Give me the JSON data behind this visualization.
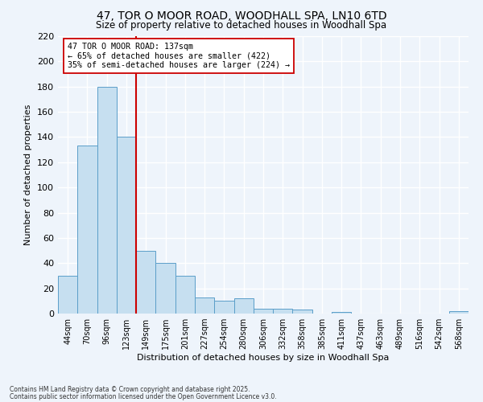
{
  "title_line1": "47, TOR O MOOR ROAD, WOODHALL SPA, LN10 6TD",
  "title_line2": "Size of property relative to detached houses in Woodhall Spa",
  "xlabel": "Distribution of detached houses by size in Woodhall Spa",
  "ylabel": "Number of detached properties",
  "bar_labels": [
    "44sqm",
    "70sqm",
    "96sqm",
    "123sqm",
    "149sqm",
    "175sqm",
    "201sqm",
    "227sqm",
    "254sqm",
    "280sqm",
    "306sqm",
    "332sqm",
    "358sqm",
    "385sqm",
    "411sqm",
    "437sqm",
    "463sqm",
    "489sqm",
    "516sqm",
    "542sqm",
    "568sqm"
  ],
  "bar_values": [
    30,
    133,
    180,
    140,
    50,
    40,
    30,
    13,
    10,
    12,
    4,
    4,
    3,
    0,
    1,
    0,
    0,
    0,
    0,
    0,
    2
  ],
  "bar_color": "#c6dff0",
  "bar_edge_color": "#5b9ec9",
  "vline_x": 3.5,
  "vline_color": "#cc0000",
  "annotation_text": "47 TOR O MOOR ROAD: 137sqm\n← 65% of detached houses are smaller (422)\n35% of semi-detached houses are larger (224) →",
  "annotation_box_color": "white",
  "annotation_box_edge": "#cc0000",
  "ylim": [
    0,
    220
  ],
  "yticks": [
    0,
    20,
    40,
    60,
    80,
    100,
    120,
    140,
    160,
    180,
    200,
    220
  ],
  "footnote1": "Contains HM Land Registry data © Crown copyright and database right 2025.",
  "footnote2": "Contains public sector information licensed under the Open Government Licence v3.0.",
  "bg_color": "#eef4fb",
  "grid_color": "#ffffff"
}
